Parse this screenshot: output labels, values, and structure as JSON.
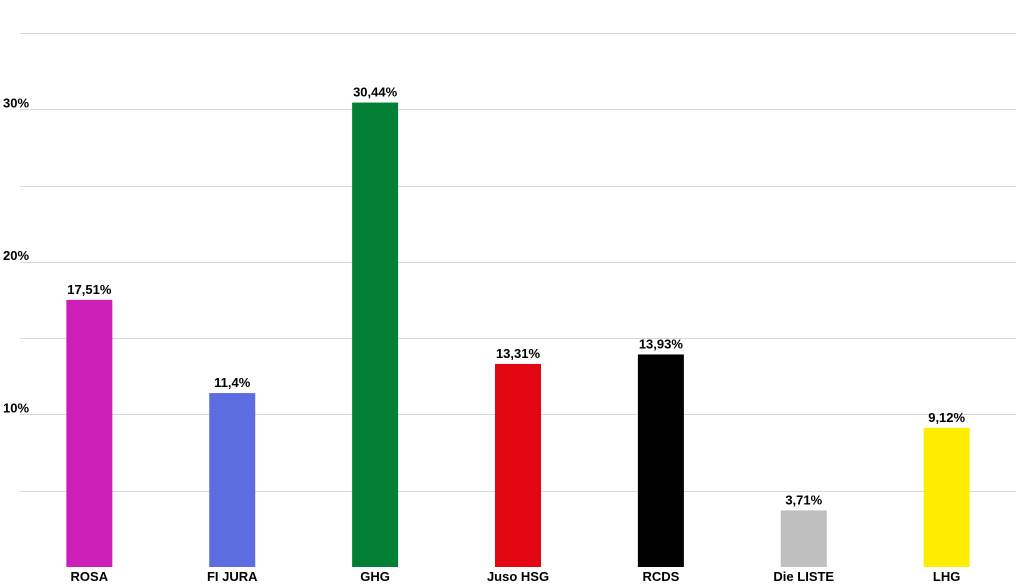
{
  "chart_data": {
    "type": "bar",
    "categories": [
      "ROSA",
      "FI JURA",
      "GHG",
      "Juso HSG",
      "RCDS",
      "Die LISTE",
      "LHG"
    ],
    "values": [
      17.51,
      11.4,
      30.44,
      13.31,
      13.93,
      3.71,
      9.12
    ],
    "value_labels": [
      "17,51%",
      "11,4%",
      "30,44%",
      "13,31%",
      "13,93%",
      "3,71%",
      "9,12%"
    ],
    "colors": [
      "#cc1fb8",
      "#5b6de0",
      "#017f35",
      "#e30613",
      "#000000",
      "#bfbfbf",
      "#ffed00"
    ],
    "ylim": [
      0,
      35
    ],
    "grid_values": [
      5,
      10,
      15,
      20,
      25,
      30,
      35
    ],
    "ytick_values": [
      10,
      20,
      30
    ],
    "ytick_labels": [
      "10%",
      "20%",
      "30%"
    ],
    "grid": true,
    "grid_color": "#d9d9d9",
    "title": "",
    "xlabel": "",
    "ylabel": ""
  }
}
